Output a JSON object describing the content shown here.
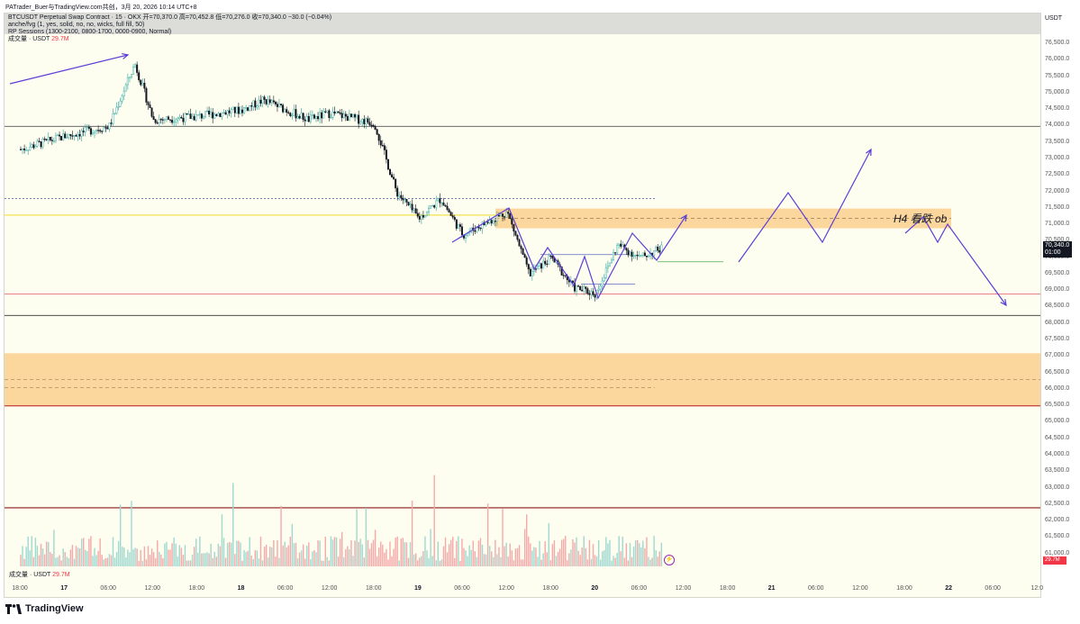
{
  "attribution": "PATrader_Buer与TradingView.com共创，3月 20, 2026 10:14 UTC+8",
  "legend": {
    "line1": "BTCUSDT Perpetual Swap Contract · 15 · OKX  开=70,370.0  高=70,452.8  低=70,276.0  收=70,340.0  −30.0 (−0.04%)",
    "line2": "anche/fvg (1, yes, solid, no, no, wicks, full fill, 50)",
    "line3": "RP Sessions (1300-2100, 0800-1700, 0000-0900, Normal)",
    "line4_label": "成交量 · USDT",
    "line4_value": "29.7M"
  },
  "price_axis": {
    "unit": "USDT",
    "ticks": [
      "76,500.0",
      "76,000.0",
      "75,500.0",
      "75,000.0",
      "74,500.0",
      "74,000.0",
      "73,500.0",
      "73,000.0",
      "72,500.0",
      "72,000.0",
      "71,500.0",
      "71,000.0",
      "70,500.0",
      "70,000.0",
      "69,500.0",
      "69,000.0",
      "68,500.0",
      "68,000.0",
      "67,500.0",
      "67,000.0",
      "66,500.0",
      "66,000.0",
      "65,500.0",
      "65,000.0",
      "64,500.0",
      "64,000.0",
      "63,500.0",
      "63,000.0",
      "62,500.0",
      "62,000.0",
      "61,500.0",
      "61,000.0"
    ],
    "last_price": "70,340.0",
    "last_time": "01:00",
    "volume_badge": "29.7M"
  },
  "time_axis": {
    "labels": [
      "18:00",
      "17",
      "06:00",
      "12:00",
      "18:00",
      "18",
      "06:00",
      "12:00",
      "18:00",
      "19",
      "06:00",
      "12:00",
      "18:00",
      "20",
      "06:00",
      "12:00",
      "18:00",
      "21",
      "06:00",
      "12:00",
      "18:00",
      "22",
      "06:00",
      "12:0"
    ],
    "bold": [
      "17",
      "18",
      "19",
      "20",
      "21",
      "22"
    ]
  },
  "volume_legend": {
    "label": "成交量 · USDT",
    "value": "29.7M"
  },
  "annotation": "H4 看跌 ob",
  "logo_text": "TradingView",
  "colors": {
    "bull": "#26a69a",
    "bear": "#131722",
    "drawing": "#5b3fd6",
    "zone": "#fbd08e",
    "yellow_line": "#f5e34a",
    "red_line": "#e57373"
  },
  "chart_data": {
    "type": "candlestick",
    "symbol": "BTCUSDT Perpetual Swap Contract",
    "interval": "15",
    "exchange": "OKX",
    "ohlc_last": {
      "open": 70370.0,
      "high": 70452.8,
      "low": 70276.0,
      "close": 70340.0,
      "change": -30.0,
      "change_pct": -0.04
    },
    "ylim": [
      60600,
      76900
    ],
    "price_path": [
      {
        "x": "03-16 18:00",
        "y": 73300
      },
      {
        "x": "03-17 00:00",
        "y": 73700
      },
      {
        "x": "03-17 06:00",
        "y": 74000
      },
      {
        "x": "03-17 09:30",
        "y": 75900
      },
      {
        "x": "03-17 12:00",
        "y": 74200
      },
      {
        "x": "03-17 18:00",
        "y": 74300
      },
      {
        "x": "03-18 00:00",
        "y": 74500
      },
      {
        "x": "03-18 03:00",
        "y": 74800
      },
      {
        "x": "03-18 09:00",
        "y": 74200
      },
      {
        "x": "03-18 12:00",
        "y": 74400
      },
      {
        "x": "03-18 18:00",
        "y": 74100
      },
      {
        "x": "03-18 21:00",
        "y": 72000
      },
      {
        "x": "03-19 00:00",
        "y": 71200
      },
      {
        "x": "03-19 03:00",
        "y": 71800
      },
      {
        "x": "03-19 06:00",
        "y": 70700
      },
      {
        "x": "03-19 12:00",
        "y": 71400
      },
      {
        "x": "03-19 15:00",
        "y": 69500
      },
      {
        "x": "03-19 18:00",
        "y": 70000
      },
      {
        "x": "03-19 21:00",
        "y": 69100
      },
      {
        "x": "03-20 00:00",
        "y": 68900
      },
      {
        "x": "03-20 03:00",
        "y": 70400
      },
      {
        "x": "03-20 06:00",
        "y": 70000
      },
      {
        "x": "03-20 09:00",
        "y": 70300
      }
    ],
    "horizontal_levels": [
      74000,
      71800,
      71300,
      68900,
      68250
    ],
    "zones": [
      {
        "label": "H4 看跌 ob",
        "from": 70900,
        "to": 71500
      },
      {
        "label": "",
        "from": 65500,
        "to": 67100
      }
    ]
  }
}
